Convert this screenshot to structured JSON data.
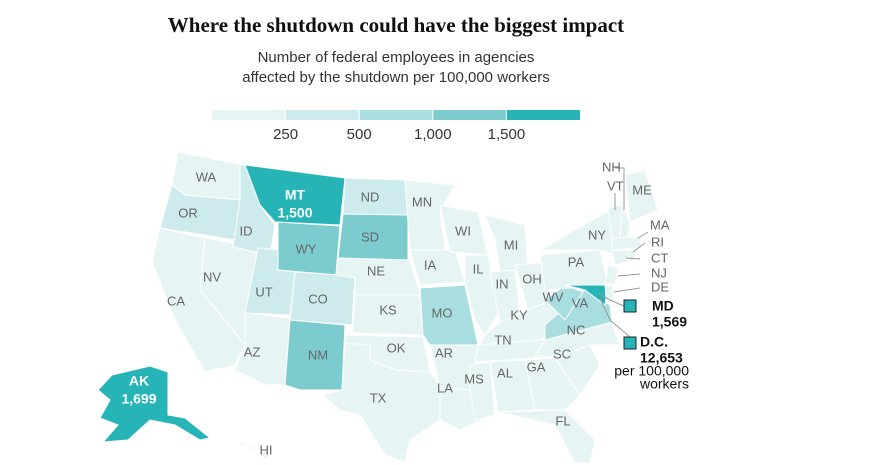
{
  "chart_data": {
    "type": "choropleth",
    "title": "Where the shutdown could have the biggest impact",
    "subtitle": [
      "Number of federal employees in agencies",
      "affected by the shutdown per 100,000 workers"
    ],
    "legend": {
      "colors": [
        "#e6f4f4",
        "#cdebec",
        "#a8dee0",
        "#7ccccf",
        "#26b4b7"
      ],
      "ticks": [
        250,
        500,
        {
          "value": 1000,
          "label": "1,000"
        },
        {
          "value": 1500,
          "label": "1,500"
        }
      ]
    },
    "note": [
      "per 100,000",
      "workers"
    ],
    "states": [
      {
        "label": "WA",
        "color": "#e6f4f4"
      },
      {
        "label": "OR",
        "color": "#cdebec"
      },
      {
        "label": "CA",
        "color": "#e6f4f4"
      },
      {
        "label": "NV",
        "color": "#e6f4f4"
      },
      {
        "label": "ID",
        "color": "#cdebec"
      },
      {
        "label": "MT",
        "color": "#26b4b7",
        "value": 1500,
        "value_label": "1,500"
      },
      {
        "label": "WY",
        "color": "#7ccccf"
      },
      {
        "label": "UT",
        "color": "#cdebec"
      },
      {
        "label": "CO",
        "color": "#cdebec"
      },
      {
        "label": "AZ",
        "color": "#e6f4f4"
      },
      {
        "label": "NM",
        "color": "#7ccccf"
      },
      {
        "label": "ND",
        "color": "#cdebec"
      },
      {
        "label": "SD",
        "color": "#7ccccf"
      },
      {
        "label": "NE",
        "color": "#e6f4f4"
      },
      {
        "label": "KS",
        "color": "#e6f4f4"
      },
      {
        "label": "OK",
        "color": "#e6f4f4"
      },
      {
        "label": "TX",
        "color": "#e6f4f4"
      },
      {
        "label": "MN",
        "color": "#e6f4f4"
      },
      {
        "label": "IA",
        "color": "#e6f4f4"
      },
      {
        "label": "MO",
        "color": "#a8dee0"
      },
      {
        "label": "AR",
        "color": "#e6f4f4"
      },
      {
        "label": "LA",
        "color": "#e6f4f4"
      },
      {
        "label": "WI",
        "color": "#e6f4f4"
      },
      {
        "label": "IL",
        "color": "#e6f4f4"
      },
      {
        "label": "MI",
        "color": "#e6f4f4"
      },
      {
        "label": "IN",
        "color": "#e6f4f4"
      },
      {
        "label": "OH",
        "color": "#e6f4f4"
      },
      {
        "label": "KY",
        "color": "#e6f4f4"
      },
      {
        "label": "TN",
        "color": "#e6f4f4"
      },
      {
        "label": "MS",
        "color": "#e6f4f4"
      },
      {
        "label": "AL",
        "color": "#e6f4f4"
      },
      {
        "label": "GA",
        "color": "#e6f4f4"
      },
      {
        "label": "FL",
        "color": "#e6f4f4"
      },
      {
        "label": "SC",
        "color": "#e6f4f4"
      },
      {
        "label": "NC",
        "color": "#e6f4f4"
      },
      {
        "label": "VA",
        "color": "#a8dee0"
      },
      {
        "label": "WV",
        "color": "#a8dee0"
      },
      {
        "label": "PA",
        "color": "#e6f4f4"
      },
      {
        "label": "NY",
        "color": "#e6f4f4"
      },
      {
        "label": "MD",
        "color": "#26b4b7",
        "value": 1569,
        "value_label": "1,569"
      },
      {
        "label": "DE",
        "color": "#e6f4f4"
      },
      {
        "label": "NJ",
        "color": "#e6f4f4"
      },
      {
        "label": "VT",
        "color": "#e6f4f4"
      },
      {
        "label": "NH",
        "color": "#e6f4f4"
      },
      {
        "label": "ME",
        "color": "#e6f4f4"
      },
      {
        "label": "MA",
        "color": "#e6f4f4"
      },
      {
        "label": "CT",
        "color": "#e6f4f4"
      },
      {
        "label": "RI",
        "color": "#e6f4f4"
      },
      {
        "label": "AK",
        "color": "#26b4b7",
        "value": 1699,
        "value_label": "1,699"
      },
      {
        "label": "HI",
        "color": "#e6f4f4"
      },
      {
        "label": "D.C.",
        "color": "#26b4b7",
        "value": 12653,
        "value_label": "12,653"
      }
    ]
  }
}
